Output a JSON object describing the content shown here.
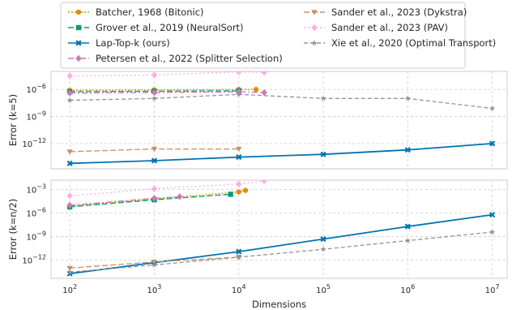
{
  "chart_data": {
    "type": "line",
    "xlabel": "Dimensions",
    "xscale": "log",
    "xlim": [
      60,
      15000000
    ],
    "x_ticks": [
      {
        "v": 100,
        "base": "10",
        "exp": "2"
      },
      {
        "v": 1000,
        "base": "10",
        "exp": "3"
      },
      {
        "v": 10000,
        "base": "10",
        "exp": "4"
      },
      {
        "v": 100000,
        "base": "10",
        "exp": "5"
      },
      {
        "v": 1000000,
        "base": "10",
        "exp": "6"
      },
      {
        "v": 10000000,
        "base": "10",
        "exp": "7"
      }
    ],
    "grid": true,
    "legend_position": "top",
    "series_styles": [
      {
        "name": "Batcher, 1968 (Bitonic)",
        "color": "#de8f05",
        "marker": "circle",
        "dash": "2,2"
      },
      {
        "name": "Grover et al., 2019 (NeuralSort)",
        "color": "#029e73",
        "marker": "square",
        "dash": "7,3"
      },
      {
        "name": "Lap-Top-k (ours)",
        "color": "#0173b2",
        "marker": "x",
        "dash": ""
      },
      {
        "name": "Petersen et al., 2022 (Splitter Selection)",
        "color": "#cc78bc",
        "marker": "diamond",
        "dash": "7,3,2,3"
      },
      {
        "name": "Sander et al., 2023 (Dykstra)",
        "color": "#ca9161",
        "marker": "triangle-down",
        "dash": "7,3"
      },
      {
        "name": "Sander et al., 2023 (PAV)",
        "color": "#fbafe4",
        "marker": "diamond",
        "dash": "2,3"
      },
      {
        "name": "Xie et al., 2020 (Optimal Transport)",
        "color": "#949494",
        "marker": "star",
        "dash": "5,3"
      }
    ],
    "panels": [
      {
        "ylabel": "Error (k=5)",
        "ylog_range": [
          -14.8,
          -4.0
        ],
        "y_ticks": [
          {
            "v": -6,
            "base": "10",
            "exp": "−6"
          },
          {
            "v": -9,
            "base": "10",
            "exp": "−9"
          },
          {
            "v": -12,
            "base": "10",
            "exp": "−12"
          }
        ],
        "series": [
          {
            "name": "Batcher, 1968 (Bitonic)",
            "points": [
              [
                100,
                -6.1
              ],
              [
                1000,
                -6.05
              ],
              [
                10000,
                -6.0
              ],
              [
                16000,
                -6.0
              ]
            ]
          },
          {
            "name": "Grover et al., 2019 (NeuralSort)",
            "points": [
              [
                100,
                -6.25
              ],
              [
                1000,
                -6.2
              ],
              [
                10000,
                -6.15
              ]
            ]
          },
          {
            "name": "Lap-Top-k (ours)",
            "points": [
              [
                100,
                -14.2
              ],
              [
                1000,
                -13.9
              ],
              [
                10000,
                -13.5
              ],
              [
                100000,
                -13.2
              ],
              [
                1000000,
                -12.7
              ],
              [
                10000000,
                -12.0
              ]
            ]
          },
          {
            "name": "Petersen et al., 2022 (Splitter Selection)",
            "points": [
              [
                100,
                -6.4
              ],
              [
                1000,
                -6.35
              ],
              [
                10000,
                -6.25
              ],
              [
                20000,
                -6.35
              ]
            ]
          },
          {
            "name": "Sander et al., 2023 (Dykstra)",
            "points": [
              [
                100,
                -12.9
              ],
              [
                1000,
                -12.6
              ],
              [
                10000,
                -12.6
              ]
            ]
          },
          {
            "name": "Sander et al., 2023 (PAV)",
            "points": [
              [
                100,
                -4.5
              ],
              [
                1000,
                -4.4
              ],
              [
                10000,
                -4.05
              ],
              [
                20000,
                -4.1
              ]
            ]
          },
          {
            "name": "Xie et al., 2020 (Optimal Transport)",
            "points": [
              [
                100,
                -7.2
              ],
              [
                1000,
                -7.0
              ],
              [
                10000,
                -6.55
              ],
              [
                100000,
                -7.0
              ],
              [
                1000000,
                -7.0
              ],
              [
                10000000,
                -8.1
              ]
            ]
          }
        ]
      },
      {
        "ylabel": "Error (k=n/2)",
        "ylog_range": [
          -14.3,
          -1.8
        ],
        "y_ticks": [
          {
            "v": -3,
            "base": "10",
            "exp": "−3"
          },
          {
            "v": -6,
            "base": "10",
            "exp": "−6"
          },
          {
            "v": -9,
            "base": "10",
            "exp": "−9"
          },
          {
            "v": -12,
            "base": "10",
            "exp": "−12"
          }
        ],
        "series": [
          {
            "name": "Batcher, 1968 (Bitonic)",
            "points": [
              [
                100,
                -5.1
              ],
              [
                1000,
                -4.2
              ],
              [
                10000,
                -3.3
              ],
              [
                12000,
                -3.1
              ]
            ]
          },
          {
            "name": "Grover et al., 2019 (NeuralSort)",
            "points": [
              [
                100,
                -5.2
              ],
              [
                1000,
                -4.3
              ],
              [
                8000,
                -3.6
              ]
            ]
          },
          {
            "name": "Lap-Top-k (ours)",
            "points": [
              [
                100,
                -13.7
              ],
              [
                1000,
                -12.3
              ],
              [
                10000,
                -10.9
              ],
              [
                100000,
                -9.3
              ],
              [
                1000000,
                -7.7
              ],
              [
                10000000,
                -6.2
              ]
            ]
          },
          {
            "name": "Petersen et al., 2022 (Splitter Selection)",
            "points": [
              [
                100,
                -5.0
              ],
              [
                1000,
                -4.1
              ],
              [
                2000,
                -3.9
              ]
            ]
          },
          {
            "name": "Sander et al., 2023 (Dykstra)",
            "points": [
              [
                100,
                -13.0
              ],
              [
                1000,
                -12.2
              ],
              [
                10000,
                -11.6
              ]
            ]
          },
          {
            "name": "Sander et al., 2023 (PAV)",
            "points": [
              [
                100,
                -3.8
              ],
              [
                1000,
                -2.9
              ],
              [
                10000,
                -2.3
              ],
              [
                20000,
                -1.9
              ]
            ]
          },
          {
            "name": "Xie et al., 2020 (Optimal Transport)",
            "points": [
              [
                100,
                -13.5
              ],
              [
                1000,
                -12.6
              ],
              [
                10000,
                -11.6
              ],
              [
                100000,
                -10.6
              ],
              [
                1000000,
                -9.5
              ],
              [
                10000000,
                -8.4
              ]
            ]
          }
        ]
      }
    ]
  }
}
